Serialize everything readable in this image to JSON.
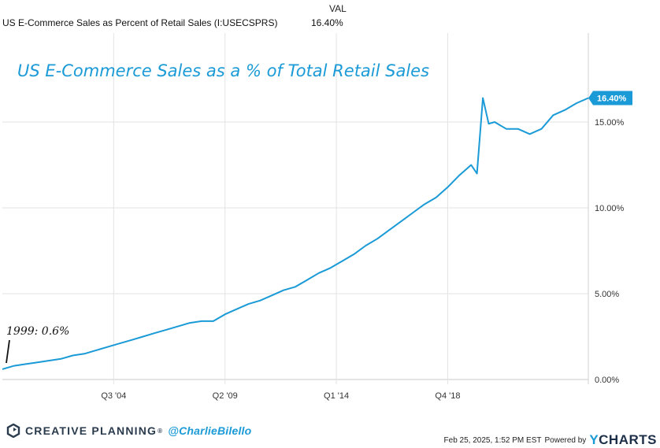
{
  "legend": {
    "header": "VAL",
    "series_name": "US E-Commerce Sales as Percent of Retail Sales (I:USECSPRS)",
    "series_value": "16.40%"
  },
  "annotations": {
    "chart_title": "US E-Commerce Sales as a % of Total Retail Sales",
    "start_label": "1999: 0.6%",
    "end_badge": "16.40%"
  },
  "footer": {
    "brand": "CREATIVE PLANNING",
    "trademark": "®",
    "handle": "@CharlieBilello",
    "timestamp": "Feb 25, 2025, 1:52 PM EST",
    "powered_by": "Powered by",
    "ycharts_y": "Y",
    "ycharts_rest": "CHARTS"
  },
  "colors": {
    "line": "#1a9ad6",
    "grid": "#e3e3e3",
    "badge": "#1a9ad6",
    "title": "#1a9ad6"
  },
  "chart_data": {
    "type": "line",
    "title": "US E-Commerce Sales as a % of Total Retail Sales",
    "xlabel": "",
    "ylabel": "",
    "x_ticks": [
      "Q3 '04",
      "Q2 '09",
      "Q1 '14",
      "Q4 '18"
    ],
    "y_ticks": [
      "0.00%",
      "5.00%",
      "10.00%",
      "15.00%"
    ],
    "y_tick_values": [
      0,
      5,
      10,
      15
    ],
    "ylim": [
      0,
      18.5
    ],
    "grid": true,
    "series": [
      {
        "name": "US E-Commerce Sales as Percent of Retail Sales (I:USECSPRS)",
        "x": [
          "Q4 '99",
          "Q2 '00",
          "Q4 '00",
          "Q2 '01",
          "Q4 '01",
          "Q2 '02",
          "Q4 '02",
          "Q2 '03",
          "Q4 '03",
          "Q2 '04",
          "Q4 '04",
          "Q2 '05",
          "Q4 '05",
          "Q2 '06",
          "Q4 '06",
          "Q2 '07",
          "Q4 '07",
          "Q2 '08",
          "Q4 '08",
          "Q2 '09",
          "Q4 '09",
          "Q2 '10",
          "Q4 '10",
          "Q2 '11",
          "Q4 '11",
          "Q2 '12",
          "Q4 '12",
          "Q2 '13",
          "Q4 '13",
          "Q2 '14",
          "Q4 '14",
          "Q2 '15",
          "Q4 '15",
          "Q2 '16",
          "Q4 '16",
          "Q2 '17",
          "Q4 '17",
          "Q2 '18",
          "Q4 '18",
          "Q2 '19",
          "Q4 '19",
          "Q1 '20",
          "Q2 '20",
          "Q3 '20",
          "Q4 '20",
          "Q2 '21",
          "Q4 '21",
          "Q2 '22",
          "Q4 '22",
          "Q2 '23",
          "Q4 '23",
          "Q2 '24",
          "Q4 '24"
        ],
        "values": [
          0.6,
          0.8,
          0.9,
          1.0,
          1.1,
          1.2,
          1.4,
          1.5,
          1.7,
          1.9,
          2.1,
          2.3,
          2.5,
          2.7,
          2.9,
          3.1,
          3.3,
          3.4,
          3.4,
          3.8,
          4.1,
          4.4,
          4.6,
          4.9,
          5.2,
          5.4,
          5.8,
          6.2,
          6.5,
          6.9,
          7.3,
          7.8,
          8.2,
          8.7,
          9.2,
          9.7,
          10.2,
          10.6,
          11.2,
          11.9,
          12.5,
          12.0,
          16.4,
          14.9,
          15.0,
          14.6,
          14.6,
          14.3,
          14.6,
          15.4,
          15.7,
          16.1,
          16.4
        ]
      }
    ]
  }
}
